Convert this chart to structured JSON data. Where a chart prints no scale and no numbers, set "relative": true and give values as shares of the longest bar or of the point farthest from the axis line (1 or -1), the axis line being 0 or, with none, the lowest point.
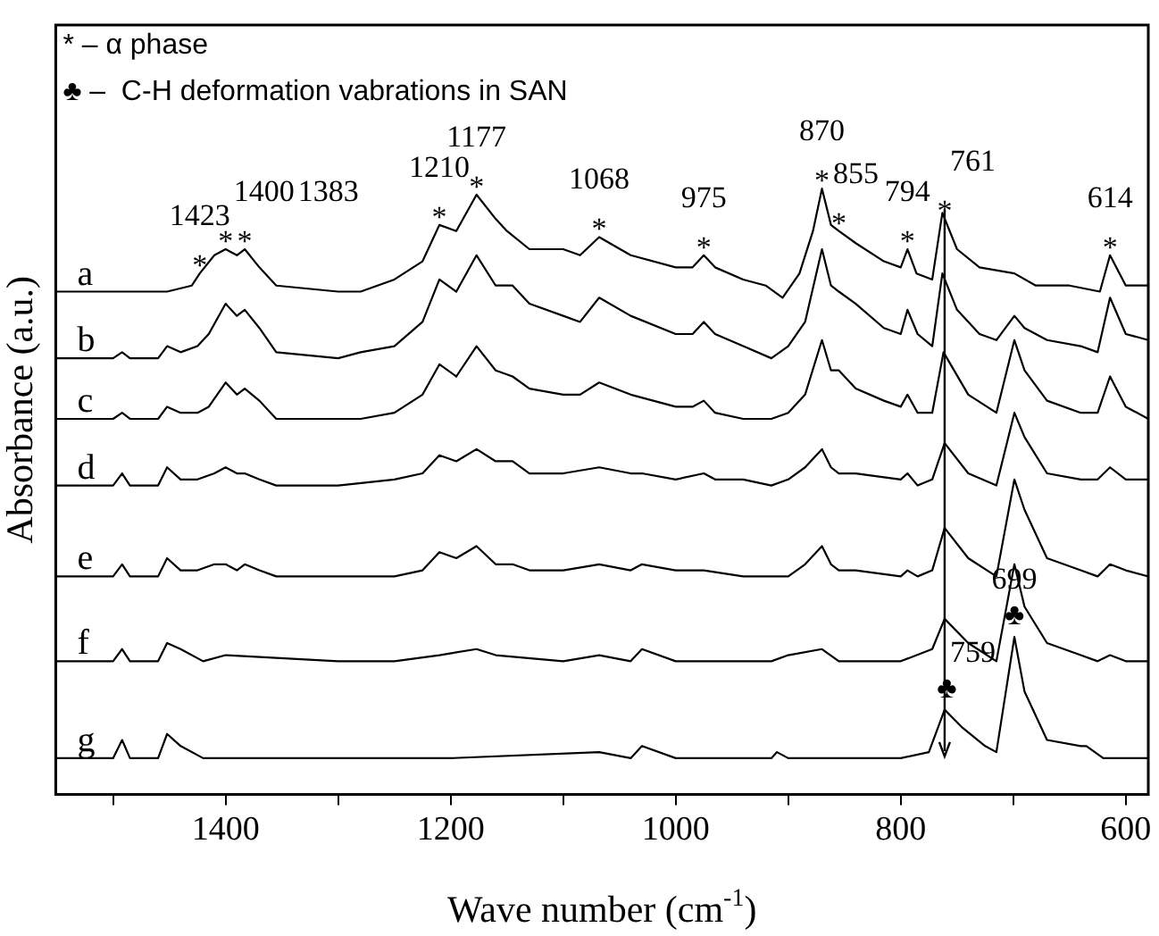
{
  "chart_data": {
    "type": "line",
    "relative": true,
    "xlabel": "Wave number (cm$^{-1}$)",
    "ylabel": "Absorbance (a.u.)",
    "xlim": [
      1551,
      580
    ],
    "xticks": [
      {
        "value": 1500,
        "label": null
      },
      1400,
      {
        "value": 1300,
        "label": null
      },
      1200,
      {
        "value": 1100,
        "label": null
      },
      1000,
      {
        "value": 900,
        "label": null
      },
      800,
      {
        "value": 700,
        "label": null
      },
      600
    ],
    "tick_labels": "x",
    "grid": false,
    "legend": false,
    "marker": "none",
    "line_style": "solid",
    "series": [
      {
        "name": "a",
        "color": "#000000",
        "x": [
          1551,
          1500,
          1452,
          1430,
          1423,
          1410,
          1400,
          1390,
          1383,
          1370,
          1355,
          1300,
          1280,
          1250,
          1225,
          1210,
          1195,
          1177,
          1160,
          1150,
          1130,
          1100,
          1085,
          1068,
          1040,
          1000,
          985,
          975,
          965,
          940,
          920,
          905,
          890,
          878,
          870,
          862,
          855,
          840,
          815,
          800,
          794,
          786,
          772,
          763,
          750,
          730,
          699,
          680,
          650,
          623,
          614,
          600,
          580
        ],
        "values": [
          0.83,
          0.83,
          0.83,
          0.84,
          0.86,
          0.89,
          0.9,
          0.89,
          0.9,
          0.87,
          0.84,
          0.83,
          0.83,
          0.85,
          0.88,
          0.94,
          0.93,
          0.99,
          0.95,
          0.93,
          0.9,
          0.9,
          0.89,
          0.92,
          0.89,
          0.87,
          0.87,
          0.89,
          0.87,
          0.85,
          0.84,
          0.82,
          0.86,
          0.93,
          1,
          0.94,
          0.93,
          0.91,
          0.88,
          0.87,
          0.9,
          0.86,
          0.85,
          0.96,
          0.9,
          0.87,
          0.86,
          0.84,
          0.84,
          0.83,
          0.89,
          0.84,
          0.84
        ]
      },
      {
        "name": "b",
        "color": "#000000",
        "x": [
          1551,
          1500,
          1492,
          1485,
          1460,
          1452,
          1440,
          1425,
          1415,
          1400,
          1390,
          1383,
          1370,
          1355,
          1300,
          1280,
          1250,
          1225,
          1210,
          1195,
          1177,
          1160,
          1145,
          1130,
          1100,
          1085,
          1068,
          1040,
          1000,
          985,
          975,
          965,
          940,
          915,
          900,
          885,
          870,
          862,
          855,
          840,
          815,
          800,
          794,
          785,
          772,
          763,
          750,
          730,
          715,
          699,
          690,
          670,
          640,
          625,
          614,
          600,
          580
        ],
        "values": [
          0.72,
          0.72,
          0.73,
          0.72,
          0.72,
          0.74,
          0.73,
          0.74,
          0.76,
          0.81,
          0.79,
          0.8,
          0.77,
          0.73,
          0.72,
          0.73,
          0.74,
          0.78,
          0.85,
          0.83,
          0.89,
          0.84,
          0.84,
          0.81,
          0.79,
          0.78,
          0.82,
          0.79,
          0.76,
          0.76,
          0.78,
          0.76,
          0.74,
          0.72,
          0.74,
          0.78,
          0.9,
          0.84,
          0.83,
          0.81,
          0.77,
          0.76,
          0.8,
          0.76,
          0.74,
          0.86,
          0.8,
          0.76,
          0.75,
          0.79,
          0.77,
          0.75,
          0.74,
          0.73,
          0.82,
          0.76,
          0.75
        ]
      },
      {
        "name": "c",
        "color": "#000000",
        "x": [
          1551,
          1500,
          1492,
          1485,
          1460,
          1452,
          1440,
          1425,
          1415,
          1400,
          1390,
          1383,
          1370,
          1355,
          1300,
          1280,
          1250,
          1225,
          1210,
          1195,
          1177,
          1160,
          1145,
          1130,
          1100,
          1085,
          1068,
          1040,
          1000,
          985,
          975,
          965,
          940,
          915,
          900,
          885,
          870,
          862,
          855,
          840,
          815,
          800,
          794,
          785,
          772,
          762,
          740,
          715,
          699,
          690,
          670,
          640,
          625,
          614,
          600,
          580
        ],
        "values": [
          0.62,
          0.62,
          0.63,
          0.62,
          0.62,
          0.64,
          0.63,
          0.63,
          0.64,
          0.68,
          0.66,
          0.67,
          0.65,
          0.62,
          0.62,
          0.62,
          0.63,
          0.66,
          0.71,
          0.69,
          0.74,
          0.7,
          0.69,
          0.67,
          0.66,
          0.66,
          0.68,
          0.66,
          0.64,
          0.64,
          0.65,
          0.63,
          0.62,
          0.62,
          0.63,
          0.66,
          0.75,
          0.7,
          0.7,
          0.67,
          0.65,
          0.64,
          0.66,
          0.63,
          0.63,
          0.73,
          0.66,
          0.63,
          0.75,
          0.7,
          0.65,
          0.63,
          0.63,
          0.69,
          0.64,
          0.62
        ]
      },
      {
        "name": "d",
        "color": "#000000",
        "x": [
          1551,
          1500,
          1492,
          1485,
          1460,
          1452,
          1440,
          1425,
          1410,
          1400,
          1390,
          1383,
          1370,
          1355,
          1300,
          1250,
          1225,
          1210,
          1195,
          1177,
          1160,
          1145,
          1130,
          1100,
          1068,
          1040,
          1030,
          1000,
          975,
          965,
          940,
          915,
          900,
          885,
          870,
          862,
          855,
          840,
          800,
          794,
          785,
          772,
          761,
          740,
          715,
          699,
          690,
          670,
          640,
          625,
          614,
          600,
          580
        ],
        "values": [
          0.51,
          0.51,
          0.53,
          0.51,
          0.51,
          0.54,
          0.52,
          0.52,
          0.53,
          0.54,
          0.53,
          0.53,
          0.52,
          0.51,
          0.51,
          0.52,
          0.53,
          0.56,
          0.55,
          0.57,
          0.55,
          0.55,
          0.53,
          0.53,
          0.54,
          0.53,
          0.53,
          0.52,
          0.53,
          0.52,
          0.52,
          0.51,
          0.52,
          0.54,
          0.57,
          0.54,
          0.53,
          0.53,
          0.52,
          0.53,
          0.51,
          0.52,
          0.58,
          0.53,
          0.51,
          0.63,
          0.59,
          0.53,
          0.52,
          0.52,
          0.54,
          0.52,
          0.52
        ]
      },
      {
        "name": "e",
        "color": "#000000",
        "x": [
          1551,
          1500,
          1492,
          1485,
          1460,
          1452,
          1440,
          1425,
          1410,
          1400,
          1390,
          1383,
          1370,
          1355,
          1300,
          1250,
          1225,
          1210,
          1195,
          1177,
          1160,
          1145,
          1130,
          1100,
          1068,
          1040,
          1030,
          1000,
          975,
          940,
          915,
          900,
          885,
          870,
          862,
          855,
          840,
          800,
          794,
          785,
          772,
          761,
          740,
          715,
          699,
          690,
          670,
          640,
          625,
          614,
          600,
          580
        ],
        "values": [
          0.36,
          0.36,
          0.38,
          0.36,
          0.36,
          0.39,
          0.37,
          0.37,
          0.38,
          0.38,
          0.37,
          0.38,
          0.37,
          0.36,
          0.36,
          0.36,
          0.37,
          0.4,
          0.39,
          0.41,
          0.38,
          0.38,
          0.37,
          0.37,
          0.38,
          0.37,
          0.38,
          0.37,
          0.37,
          0.36,
          0.36,
          0.36,
          0.38,
          0.41,
          0.38,
          0.37,
          0.37,
          0.36,
          0.37,
          0.36,
          0.37,
          0.44,
          0.39,
          0.36,
          0.52,
          0.47,
          0.39,
          0.37,
          0.36,
          0.38,
          0.37,
          0.36
        ]
      },
      {
        "name": "f",
        "color": "#000000",
        "x": [
          1551,
          1500,
          1492,
          1485,
          1460,
          1452,
          1440,
          1420,
          1400,
          1300,
          1250,
          1210,
          1177,
          1160,
          1100,
          1068,
          1040,
          1030,
          1000,
          940,
          915,
          900,
          870,
          855,
          800,
          772,
          761,
          740,
          715,
          699,
          690,
          670,
          640,
          625,
          614,
          600,
          580
        ],
        "values": [
          0.22,
          0.22,
          0.24,
          0.22,
          0.22,
          0.25,
          0.24,
          0.22,
          0.23,
          0.22,
          0.22,
          0.23,
          0.24,
          0.23,
          0.22,
          0.23,
          0.22,
          0.24,
          0.22,
          0.22,
          0.22,
          0.23,
          0.24,
          0.22,
          0.22,
          0.24,
          0.29,
          0.25,
          0.22,
          0.38,
          0.31,
          0.25,
          0.23,
          0.22,
          0.23,
          0.22,
          0.22
        ]
      },
      {
        "name": "g",
        "color": "#000000",
        "x": [
          1551,
          1500,
          1492,
          1485,
          1460,
          1452,
          1440,
          1420,
          1400,
          1300,
          1200,
          1068,
          1040,
          1030,
          1000,
          950,
          915,
          910,
          900,
          800,
          775,
          761,
          745,
          725,
          715,
          699,
          690,
          670,
          640,
          635,
          620,
          600,
          580
        ],
        "values": [
          0.06,
          0.06,
          0.09,
          0.06,
          0.06,
          0.1,
          0.08,
          0.06,
          0.06,
          0.06,
          0.06,
          0.07,
          0.06,
          0.08,
          0.06,
          0.06,
          0.06,
          0.07,
          0.06,
          0.06,
          0.07,
          0.14,
          0.11,
          0.08,
          0.07,
          0.26,
          0.17,
          0.09,
          0.08,
          0.08,
          0.06,
          0.06,
          0.06
        ]
      }
    ],
    "ref_lines": [
      {
        "axis": "x",
        "value": 761,
        "line_style": "solid",
        "color": "#000000"
      }
    ],
    "annotations": [
      "* – α phase",
      "♣ –  C-H deformation vabrations in SAN",
      {
        "text": "*",
        "x": 1423,
        "y": 0.86
      },
      {
        "text": "1423",
        "x": 1423,
        "y": 0.86
      },
      {
        "text": "*",
        "x": 1400,
        "y": 0.9
      },
      {
        "text": "1400",
        "x": 1400,
        "y": 0.9
      },
      {
        "text": "*",
        "x": 1383,
        "y": 0.9
      },
      {
        "text": "1383",
        "x": 1383,
        "y": 0.9
      },
      {
        "text": "*",
        "x": 1210,
        "y": 0.94
      },
      {
        "text": "1210",
        "x": 1210,
        "y": 0.94
      },
      {
        "text": "*",
        "x": 1177,
        "y": 0.99
      },
      {
        "text": "1177",
        "x": 1177,
        "y": 0.99
      },
      {
        "text": "*",
        "x": 1068,
        "y": 0.92
      },
      {
        "text": "1068",
        "x": 1068,
        "y": 0.92
      },
      {
        "text": "*",
        "x": 975,
        "y": 0.89
      },
      {
        "text": "975",
        "x": 975,
        "y": 0.89
      },
      {
        "text": "*",
        "x": 870,
        "y": 1
      },
      {
        "text": "870",
        "x": 870,
        "y": 1
      },
      {
        "text": "*",
        "x": 855,
        "y": 0.93
      },
      {
        "text": "855",
        "x": 855,
        "y": 0.93
      },
      {
        "text": "*",
        "x": 794,
        "y": 0.9
      },
      {
        "text": "794",
        "x": 794,
        "y": 0.9
      },
      {
        "text": "*",
        "x": 761,
        "y": 0.95
      },
      {
        "text": "761",
        "x": 761,
        "y": 0.95
      },
      {
        "text": "*",
        "x": 614,
        "y": 0.89
      },
      {
        "text": "614",
        "x": 614,
        "y": 0.89
      },
      {
        "text": "♣",
        "x": 759,
        "y": 0.14
      },
      {
        "text": "759",
        "x": 759,
        "y": 0.14
      },
      {
        "text": "♣",
        "x": 699,
        "y": 0.26
      },
      {
        "text": "699",
        "x": 699,
        "y": 0.26
      }
    ]
  }
}
